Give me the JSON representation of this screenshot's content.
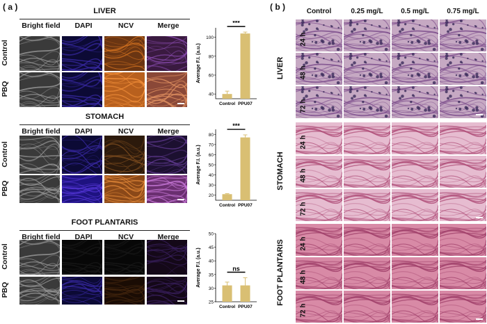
{
  "panel_a_label": "( a )",
  "panel_b_label": "( b )",
  "panel_a": {
    "column_headers": [
      "Bright field",
      "DAPI",
      "NCV",
      "Merge"
    ],
    "row_labels": [
      "Control",
      "PBQ"
    ],
    "sections": [
      {
        "title": "LIVER"
      },
      {
        "title": "STOMACH"
      },
      {
        "title": "FOOT PLANTARIS"
      }
    ]
  },
  "chart_data": [
    {
      "type": "bar",
      "title": "",
      "ylabel": "Average F.I. (a.u.)",
      "categories": [
        "Control",
        "PPU07"
      ],
      "values": [
        40,
        104
      ],
      "errors": [
        3,
        1.5
      ],
      "ylim": [
        35,
        110
      ],
      "yticks": [
        40,
        60,
        80,
        100
      ],
      "significance": "***",
      "bar_color": "#d9bf73"
    },
    {
      "type": "bar",
      "title": "",
      "ylabel": "Average F.I. (a.u.)",
      "categories": [
        "Control",
        "PPU07"
      ],
      "values": [
        21,
        77
      ],
      "errors": [
        0.5,
        2.5
      ],
      "ylim": [
        15,
        85
      ],
      "yticks": [
        20,
        30,
        40,
        50,
        60,
        70,
        80
      ],
      "significance": "***",
      "bar_color": "#d9bf73"
    },
    {
      "type": "bar",
      "title": "",
      "ylabel": "Average F.I. (a.u.)",
      "categories": [
        "Control",
        "PPU07"
      ],
      "values": [
        31,
        31
      ],
      "errors": [
        1.2,
        2.8
      ],
      "ylim": [
        25,
        50
      ],
      "yticks": [
        25,
        30,
        35,
        40,
        45,
        50
      ],
      "significance": "ns",
      "bar_color": "#d9bf73"
    }
  ],
  "panel_b": {
    "column_headers": [
      "Control",
      "0.25 mg/L",
      "0.5 mg/L",
      "0.75 mg/L"
    ],
    "time_labels": [
      "24 h",
      "48 h",
      "72 h"
    ],
    "organs": [
      "LIVER",
      "STOMACH",
      "FOOT PLANTARIS"
    ]
  }
}
